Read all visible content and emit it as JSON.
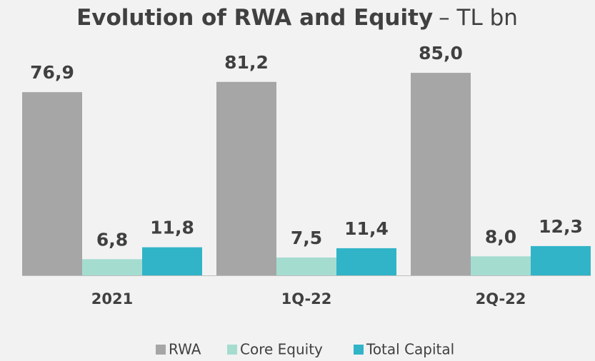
{
  "chart_data": {
    "type": "bar",
    "title": "Evolution of RWA and Equity",
    "subtitle": "– TL bn",
    "categories": [
      "2021",
      "1Q-22",
      "2Q-22"
    ],
    "series": [
      {
        "name": "RWA",
        "color": "#a6a6a6",
        "values": [
          76.9,
          81.2,
          85.0
        ],
        "value_labels": [
          "76,9",
          "81,2",
          "85,0"
        ]
      },
      {
        "name": "Core Equity",
        "color": "#a5dcd0",
        "values": [
          6.8,
          7.5,
          8.0
        ],
        "value_labels": [
          "6,8",
          "7,5",
          "8,0"
        ]
      },
      {
        "name": "Total Capital",
        "color": "#31b4c8",
        "values": [
          11.8,
          11.4,
          12.3
        ],
        "value_labels": [
          "11,8",
          "11,4",
          "12,3"
        ]
      }
    ]
  }
}
